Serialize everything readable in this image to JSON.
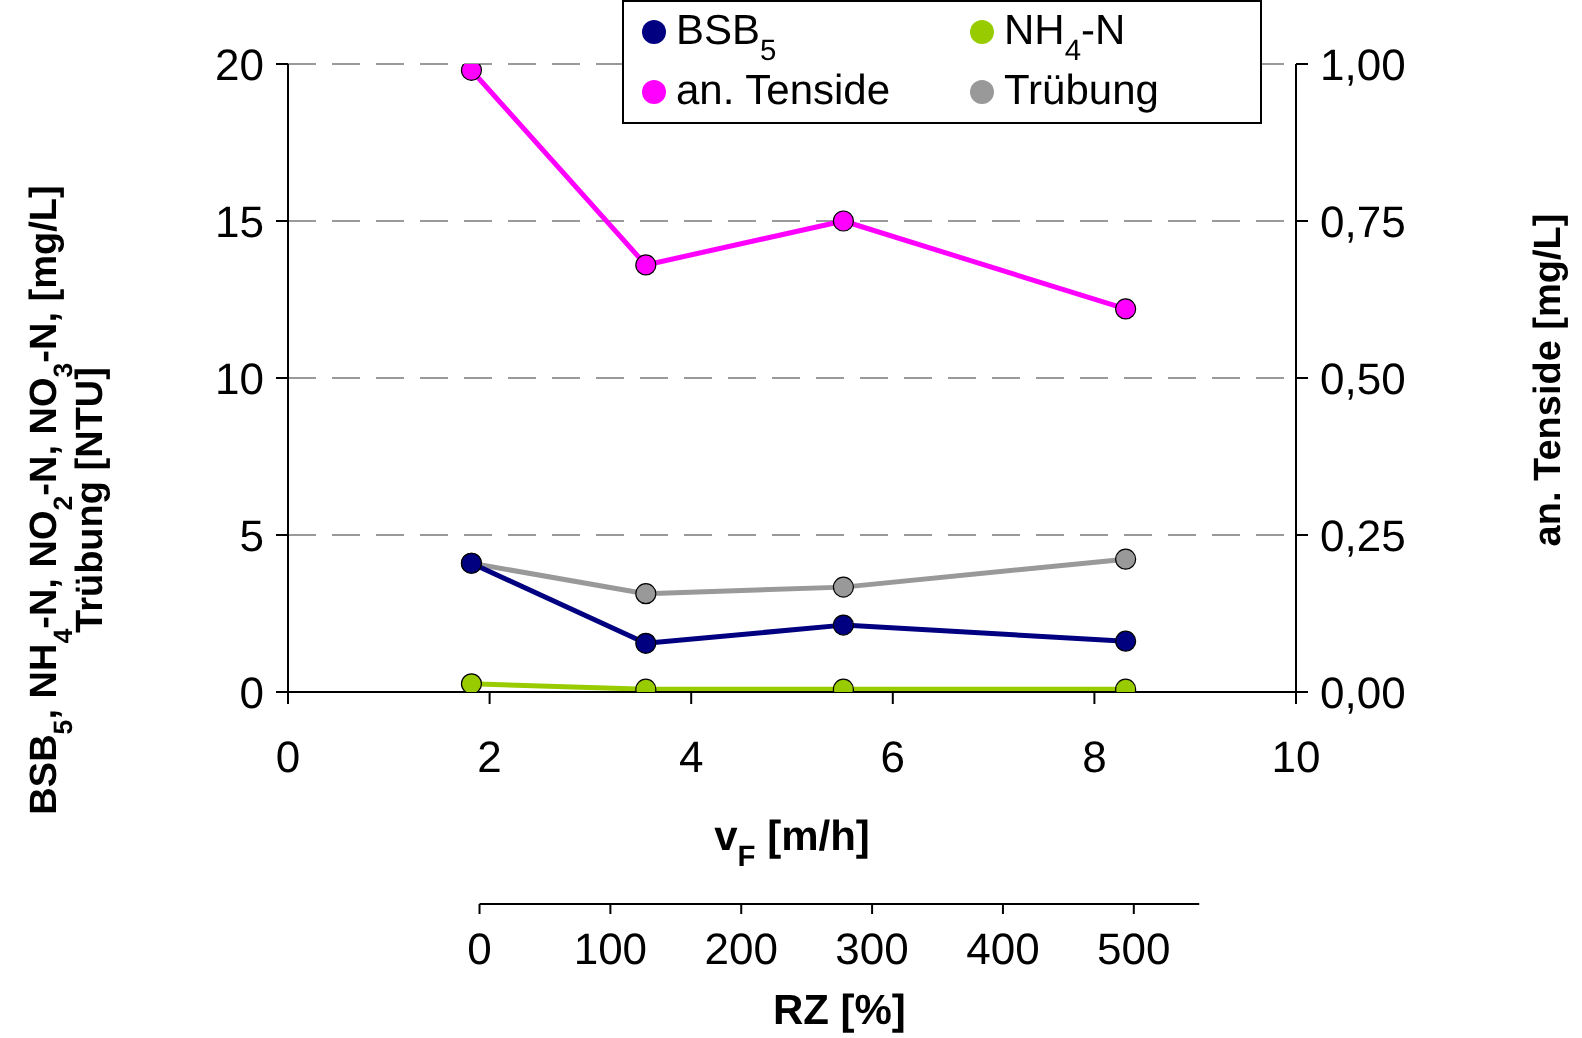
{
  "chart_data": {
    "type": "line",
    "xlabel": "v$_{F}$ [m/h]",
    "ylabel": "BSB$_{5}$, NH$_{4}$-N, NO$_{2}$-N, NO$_{3}$-N, [mg/L]\nTrübung [NTU]",
    "y2label": "an. Tenside [mg/L]",
    "x2label": "RZ [%]",
    "x": [
      1.82,
      3.55,
      5.51,
      8.31
    ],
    "xlim": [
      0,
      10
    ],
    "xticks": [
      0,
      2,
      4,
      6,
      8,
      10
    ],
    "ylim": [
      0,
      20
    ],
    "yticks": [
      0,
      5,
      10,
      15,
      20
    ],
    "y2lim": [
      0,
      1
    ],
    "y2ticks": [
      {
        "value": 0,
        "label": "0,00"
      },
      {
        "value": 0.25,
        "label": "0,25"
      },
      {
        "value": 0.5,
        "label": "0,50"
      },
      {
        "value": 0.75,
        "label": "0,75"
      },
      {
        "value": 1,
        "label": "1,00"
      }
    ],
    "x2lim": [
      0,
      550
    ],
    "x2ticks": [
      0,
      100,
      200,
      300,
      400,
      500
    ],
    "series": [
      {
        "name": "BSB$_{5}$",
        "color": "#000080",
        "values": [
          4.1,
          1.55,
          2.13,
          1.62
        ]
      },
      {
        "name": "NH$_{4}$-N",
        "color": "#99cc00",
        "values": [
          0.26,
          0.09,
          0.09,
          0.09
        ]
      },
      {
        "name": "an. Tenside",
        "color": "#ff00ff",
        "axis": "y2",
        "values": [
          0.99,
          0.68,
          0.75,
          0.61
        ]
      },
      {
        "name": "Trübung",
        "color": "#999999",
        "values": [
          4.1,
          3.13,
          3.34,
          4.23
        ]
      }
    ],
    "grid": "y",
    "legend": "top",
    "marker": "circle",
    "line_style": "solid"
  }
}
